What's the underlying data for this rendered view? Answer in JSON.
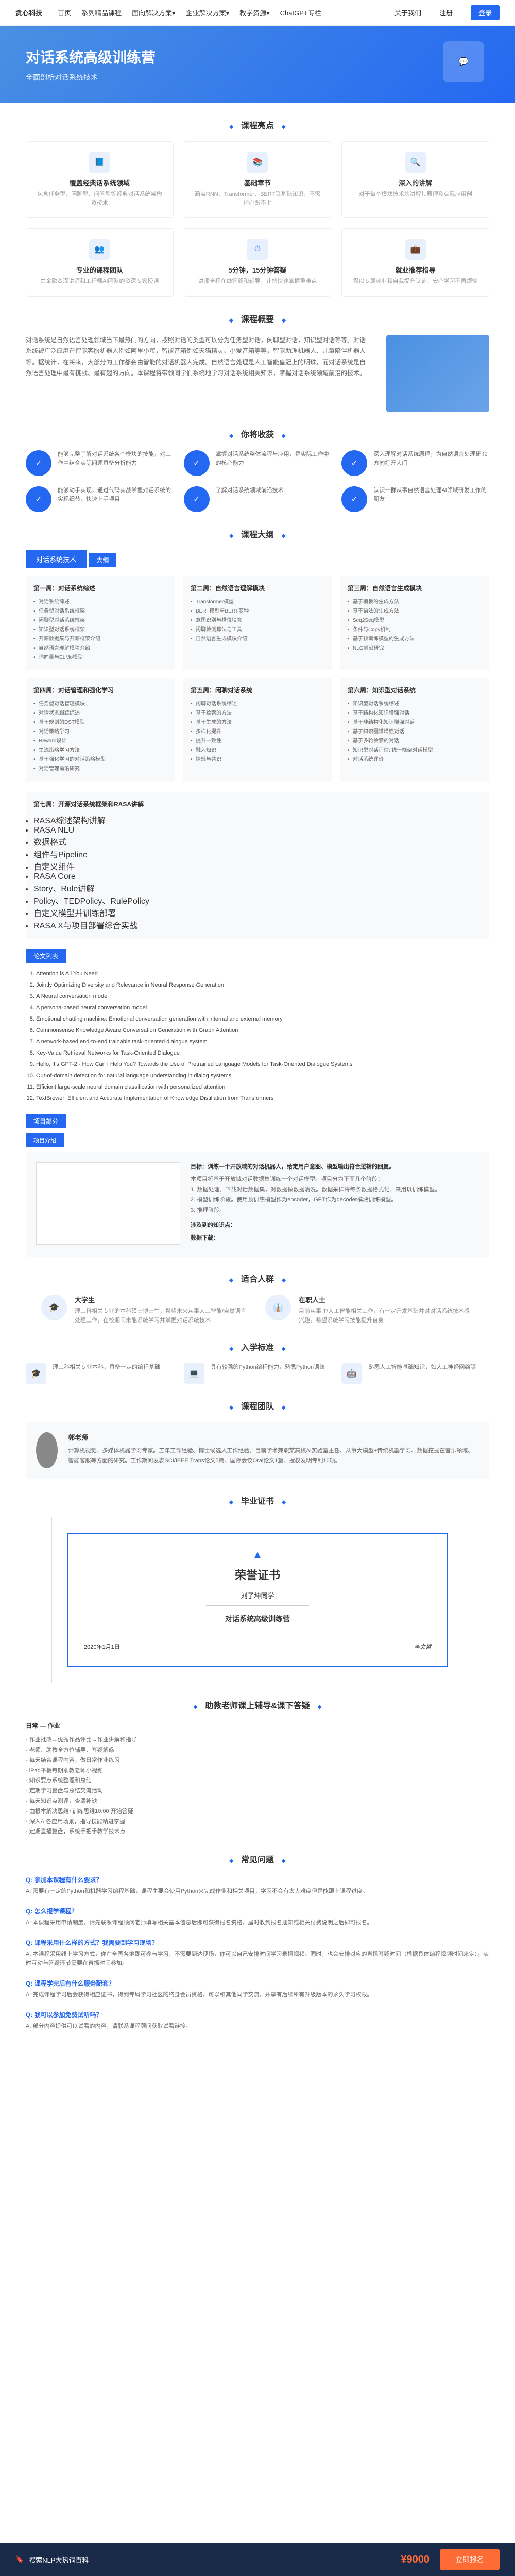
{
  "nav": {
    "logo": "贪心科技",
    "items": [
      "首页",
      "系列精品课程",
      "面向解决方案▾",
      "企业解决方案▾",
      "教学资源▾",
      "ChatGPT专栏",
      "关于我们",
      "注册"
    ],
    "login": "登录"
  },
  "hero": {
    "title": "对话系统高级训练营",
    "sub": "全面剖析对话系统技术"
  },
  "sec_highlights": "课程亮点",
  "feats": [
    {
      "t": "覆盖经典话系统领域",
      "d": "包含任务型、闲聊型、问答型等经典对话系统架构及技术"
    },
    {
      "t": "基础章节",
      "d": "涵盖RNN、Transformer、BERT等基础知识，不需担心跟不上"
    },
    {
      "t": "深入的讲解",
      "d": "对于每个模块技术均讲解其原理及实际应用例"
    },
    {
      "t": "专业的课程团队",
      "d": "由金融资深讲师和工程师AI团队的资深专家授课"
    },
    {
      "t": "5分钟，15分钟答疑",
      "d": "讲师全程在线答疑和辅导，让您快速掌握重难点"
    },
    {
      "t": "就业推荐指导",
      "d": "得以专属就业和自我提升认证，安心学习不再烦恼"
    }
  ],
  "sec_overview": "课程概要",
  "overview": "对话系统是自然语言处理领域当下最热门的方向，按照对话的类型可以分为任务型对话，闲聊型对话，知识型对话等等。对话系统被广泛应用在智能客服机器人例如阿里小蜜，智能音箱例如天猫精灵、小爱音箱等等，智能助理机器人、儿童陪伴机器人等。据统计，在将来，大部分的工作都会由智能的对话机器人完成。自然语言处理是人工智能皇冠上的明珠，而对话系统是自然语言处理中最有挑战、最有趣的方向。本课程将带领同学们系统地学习对话系统相关知识，掌握对话系统领域前沿的技术。",
  "sec_gain": "你将收获",
  "gains": [
    "能够完整了解对话系统各个模块的技能，对工作中结合实际问题具备分析能力",
    "掌握对话系统整体流程与应用，是实际工作中的核心能力",
    "深入理解对话系统原理，为自然语言处理研究方向打开大门",
    "能够动手实现，通过代码实战掌握对话系统的实现细节，快速上手项目",
    "了解对话系统领域前沿技术",
    "认识一群从事自然语言处理AI领域研发工作的朋友"
  ],
  "sec_syllabus": "课程大纲",
  "syl_head": "对话系统技术",
  "long_label": "大纲",
  "weeks": [
    {
      "t": "第一周：对话系统综述",
      "items": [
        "对话系统综述",
        "任务型对话系统框架",
        "闲聊型对话系统框架",
        "知识型对话系统框架",
        "开源数据集与开源框架介绍",
        "自然语言理解模块介绍",
        "词向量与ELMo模型"
      ]
    },
    {
      "t": "第二周：自然语言理解模块",
      "items": [
        "Transformer模型",
        "BERT模型与BERT变种",
        "意图识别与槽位填充",
        "闲聊检测算法与工具",
        "自然语言生成模块介绍"
      ]
    },
    {
      "t": "第三周：自然语言生成模块",
      "items": [
        "基于模板的生成方法",
        "基于语法的生成方法",
        "Seq2Seq模型",
        "条件与Copy机制",
        "基于预训练模型的生成方法",
        "NLG前沿研究"
      ]
    },
    {
      "t": "第四周：对话管理和强化学习",
      "items": [
        "任务型对话管理模块",
        "对话状态跟踪综述",
        "基于规则的DST模型",
        "对话策略学习",
        "Reward设计",
        "主流策略学习方法",
        "基于强化学习的对话策略模型",
        "对话管理前沿研究"
      ]
    },
    {
      "t": "第五周：闲聊对话系统",
      "items": [
        "闲聊对话系统综述",
        "基于检索的方法",
        "基于生成的方法",
        "多样化提升",
        "提升一致性",
        "融入知识",
        "情感与共识"
      ]
    },
    {
      "t": "第六周：知识型对话系统",
      "items": [
        "知识型对话系统综述",
        "基于结构化知识增强对话",
        "基于非结构化知识增强对话",
        "基于知识图谱增强对话",
        "基于多轮检索的对话",
        "知识型对话评估: 统一框架对话模型",
        "对话系统评价"
      ]
    }
  ],
  "week7": {
    "t": "第七周：开源对话系统框架和RASA讲解",
    "items": [
      "RASA综述架构讲解",
      "RASA NLU",
      "数据格式",
      "组件与Pipeline",
      "自定义组件",
      "RASA Core",
      "Story、Rule讲解",
      "Policy、TEDPolicy、RulePolicy",
      "自定义模型并训练部署",
      "RASA X与项目部署综合实战"
    ]
  },
  "sec_papers": "论文列表",
  "papers": [
    "Attention is All You Need",
    "Jointly Optimizing Diversity and Relevance in Neural Response Generation",
    "A Neural conversation model",
    "A persona-based neural conversation model",
    "Emotional chatting machine: Emotional conversation generation with internal and external memory",
    "Commonsense Knowledge Aware Conversation Generation with Graph Attention",
    "A network-based end-to-end trainable task-oriented dialogue system",
    "Key-Value Retrieval Networks for Task-Oriented Dialogue",
    "Hello, It's GPT-2 - How Can I Help You? Towards the Use of Pretrained Language Models for Task-Oriented Dialogue Systems",
    "Out-of-domain detection for natural language understanding in dialog systems",
    "Efficient large-scale neural domain classification with personalized attention",
    "TextBrewer: Efficient and Accurate Implementation of Knowledge Distillation from Transformers"
  ],
  "sec_proj": "项目部分",
  "proj_tag": "项目介绍",
  "proj": {
    "title": "目标：训练一个开放域的对话机器人，给定用户意图、模型输出符合逻辑的回复。",
    "body": "本项目将基于开放域对话数据集训练一个对话模型。项目分为下面几个阶段：\n1. 数据处理。下载对话数据集，对数据做数据清洗。数据采样将每条数据格式化、来用以训练模型。\n2. 模型训练阶段。使用预训练模型作为encoder，GPT作为decoder模块训练模型。\n3. 推理阶段。",
    "topics": "涉及到的知识点：",
    "dl": "数据下载："
  },
  "sec_aud": "适合人群",
  "auds": [
    {
      "t": "大学生",
      "d": "理工科相关专业的本科硕士博士生，希望未来从事人工智能/自然语言处理工作，在校期间未能系统学习并掌握对话系统技术"
    },
    {
      "t": "在职人士",
      "d": "目前从事IT/人工智能相关工作，有一定开发基础并对对话系统技术感兴趣，希望系统学习技能提升自身"
    }
  ],
  "sec_req": "入学标准",
  "reqs": [
    "理工科相关专业本科，具备一定的编程基础",
    "具有较强的Python编程能力，熟悉Python语法",
    "熟悉人工智能基础知识，如人工神经网络等"
  ],
  "sec_team": "课程团队",
  "team": {
    "name": "郭老师",
    "desc": "计算机视觉、多媒体机器学习专家。五年工作经验、博士候选人工作经验。目前学术兼职某高校AI实验室主任、从事大模型+传统机器学习、数据挖掘在音乐领域、智能客服等方面的研究。工作期间发表SCI/IEEE Trans论文5篇、国际会议Oral论文1篇、授权发明专利10项。"
  },
  "sec_cert": "毕业证书",
  "cert": {
    "title": "荣誉证书",
    "name": "刘子坤同学",
    "course": "对话系统高级训练营",
    "date": "2020年1月1日",
    "sign": "李文哲"
  },
  "sec_support": "助教老师课上辅导&课下答疑",
  "support": {
    "title": "日常 — 作业",
    "items": [
      "作业批改→优秀作品评比→作业讲解和指导",
      "老师、助教全方位辅导、答疑解惑",
      "每天结合课程内容，做日常作业练习",
      "iPad平板每期助教老师小视频",
      "知识要点系统整理和总结",
      "定期学习复盘与总结交流活动",
      "每天知识点测评，查漏补缺",
      "由根本解决思维+训练思维10:00 开始答疑",
      "深入AI各应用场景，指导技能精进掌握",
      "定期直播复盘，系统手把手教学技术点"
    ]
  },
  "sec_faq": "常见问题",
  "faqs": [
    {
      "q": "Q: 参加本课程有什么要求？",
      "a": "A: 需要有一定的Python和机器学习编程基础，课程主要会使用Python来完成作业和相关项目，学习不会有太大难度但是能跟上课程进度。"
    },
    {
      "q": "Q: 怎么报学课程？",
      "a": "A: 本课程采用申请制度，请先联系课程顾问老师填写相关基本信息后即可获得报名资格，届时收到报名通知或相关付费说明之后即可报名。"
    },
    {
      "q": "Q: 课程采用什么样的方式？我需要到学习现场？",
      "a": "A: 本课程采用线上学习方式，你在全国各地即可参与学习，不需要到达现场，你可以自己安排时间学习录播视频。同时，也会安排对应的直播答疑时间（根据具体编程视频时间来定），实时互动与答疑环节需要在直播时间参加。"
    },
    {
      "q": "Q: 课程学完后有什么服务配套？",
      "a": "A: 完成课程学习后会获得相应证书，得到专属学习社区的终身会员资格，可以和其他同学交流，并享有后续所有升级版本的永久学习权限。"
    },
    {
      "q": "Q: 我可以参加免费试听吗？",
      "a": "A: 部分内容提供可以试看的内容，请联系课程顾问获取试看链接。"
    }
  ],
  "footer": {
    "left": "搜索NLP大热词百科",
    "price": "¥9000",
    "btn": "立即报名"
  }
}
